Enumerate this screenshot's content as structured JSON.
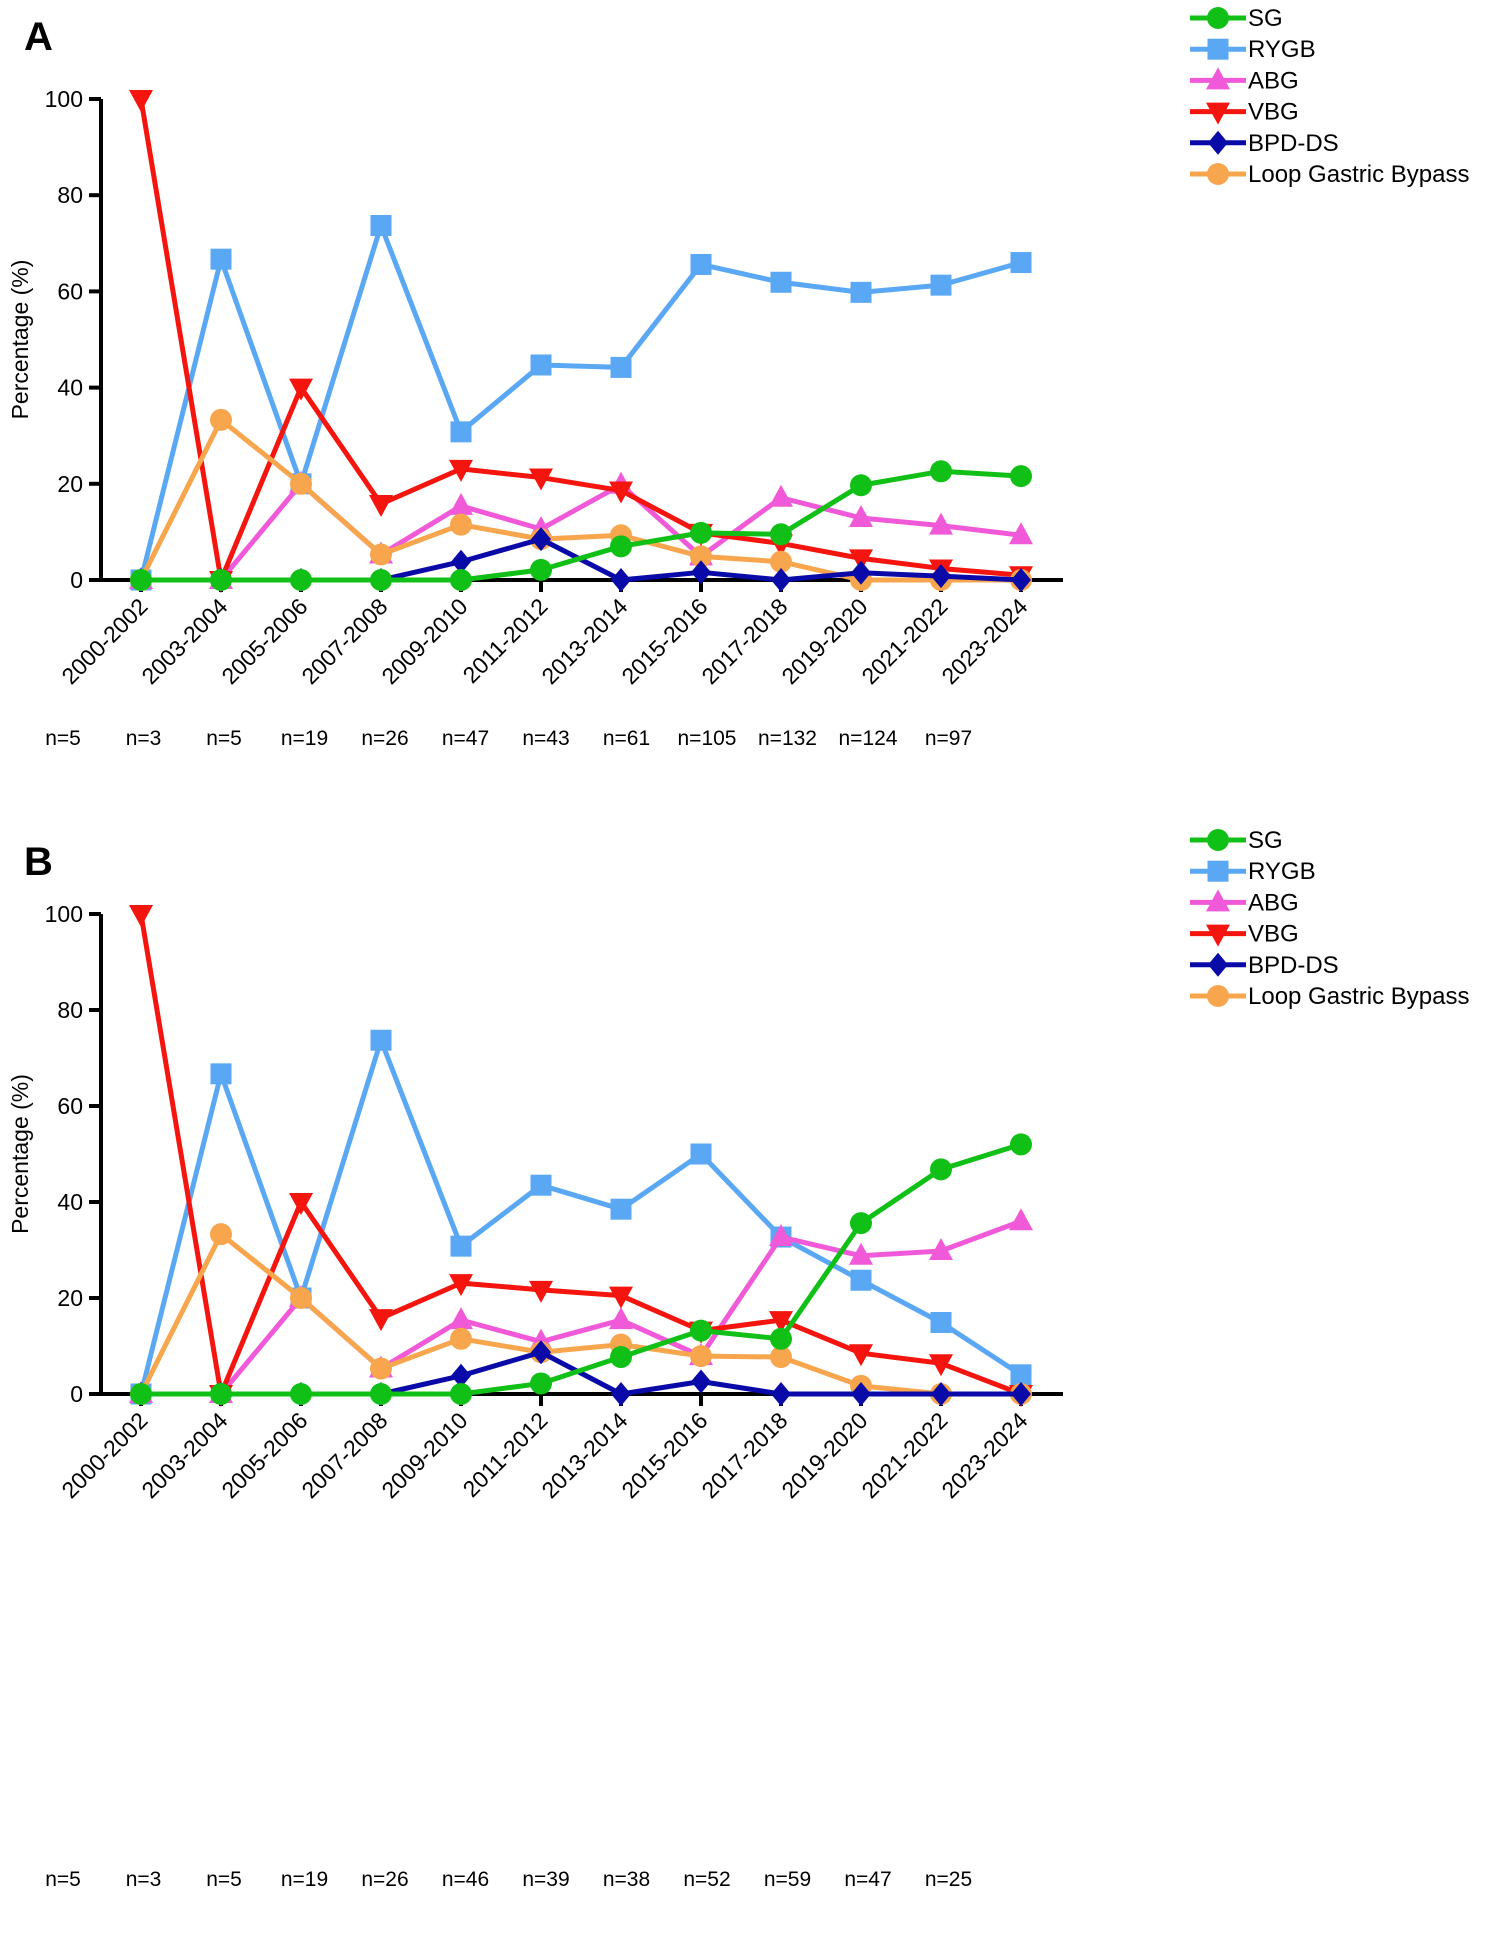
{
  "chart_data": [
    {
      "panel": "A",
      "type": "line",
      "ylabel": "Percentage (%)",
      "xlabel": "",
      "ylim": [
        0,
        100
      ],
      "yticks": [
        0,
        20,
        40,
        60,
        80,
        100
      ],
      "categories": [
        "2000-2002",
        "2003-2004",
        "2005-2006",
        "2007-2008",
        "2009-2010",
        "2011-2012",
        "2013-2014",
        "2015-2016",
        "2017-2018",
        "2019-2020",
        "2021-2022",
        "2023-2024"
      ],
      "n_labels": [
        "n=5",
        "n=3",
        "n=5",
        "n=19",
        "n=26",
        "n=47",
        "n=43",
        "n=61",
        "n=105",
        "n=132",
        "n=124",
        "n=97"
      ],
      "legend_position": "top-right",
      "series": [
        {
          "name": "SG",
          "color": "#11c016",
          "marker": "circle",
          "values": [
            0,
            0,
            0,
            0,
            0,
            2.1,
            7,
            9.8,
            9.5,
            19.7,
            22.6,
            21.6
          ]
        },
        {
          "name": "RYGB",
          "color": "#5aa8f4",
          "marker": "square",
          "values": [
            0,
            66.7,
            20,
            73.7,
            30.8,
            44.7,
            44.2,
            65.6,
            61.9,
            59.8,
            61.3,
            66
          ]
        },
        {
          "name": "ABG",
          "color": "#f05ad8",
          "marker": "triangle-up",
          "values": [
            0,
            0,
            20,
            5.3,
            15.4,
            10.6,
            19.8,
            4.9,
            17.1,
            12.9,
            11.3,
            9.3
          ]
        },
        {
          "name": "VBG",
          "color": "#f5150f",
          "marker": "triangle-down",
          "values": [
            100,
            0,
            40,
            15.8,
            23.1,
            21.3,
            18.6,
            9.8,
            7.6,
            4.5,
            2.4,
            1
          ]
        },
        {
          "name": "BPD-DS",
          "color": "#0a0aa8",
          "marker": "diamond",
          "values": [
            0,
            0,
            0,
            0,
            3.8,
            8.5,
            0,
            1.6,
            0,
            1.5,
            0.8,
            0
          ]
        },
        {
          "name": "Loop Gastric Bypass",
          "color": "#f7a64d",
          "marker": "circle",
          "values": [
            0,
            33.3,
            20,
            5.3,
            11.5,
            8.5,
            9.3,
            4.9,
            3.8,
            0,
            0,
            0
          ]
        }
      ]
    },
    {
      "panel": "B",
      "type": "line",
      "ylabel": "Percentage (%)",
      "xlabel": "",
      "ylim": [
        0,
        100
      ],
      "yticks": [
        0,
        20,
        40,
        60,
        80,
        100
      ],
      "categories": [
        "2000-2002",
        "2003-2004",
        "2005-2006",
        "2007-2008",
        "2009-2010",
        "2011-2012",
        "2013-2014",
        "2015-2016",
        "2017-2018",
        "2019-2020",
        "2021-2022",
        "2023-2024"
      ],
      "n_labels": [
        "n=5",
        "n=3",
        "n=5",
        "n=19",
        "n=26",
        "n=46",
        "n=39",
        "n=38",
        "n=52",
        "n=59",
        "n=47",
        "n=25"
      ],
      "legend_position": "top-right",
      "series": [
        {
          "name": "SG",
          "color": "#11c016",
          "marker": "circle",
          "values": [
            0,
            0,
            0,
            0,
            0,
            2.2,
            7.7,
            13.2,
            11.5,
            35.6,
            46.8,
            52
          ]
        },
        {
          "name": "RYGB",
          "color": "#5aa8f4",
          "marker": "square",
          "values": [
            0,
            66.7,
            20,
            73.7,
            30.8,
            43.5,
            38.5,
            50,
            32.7,
            23.7,
            14.9,
            4
          ]
        },
        {
          "name": "ABG",
          "color": "#f05ad8",
          "marker": "triangle-up",
          "values": [
            0,
            0,
            20,
            5.3,
            15.4,
            10.9,
            15.4,
            7.9,
            32.7,
            28.8,
            29.8,
            36
          ]
        },
        {
          "name": "VBG",
          "color": "#f5150f",
          "marker": "triangle-down",
          "values": [
            100,
            0,
            40,
            15.8,
            23.1,
            21.7,
            20.5,
            13.2,
            15.4,
            8.5,
            6.4,
            0
          ]
        },
        {
          "name": "BPD-DS",
          "color": "#0a0aa8",
          "marker": "diamond",
          "values": [
            0,
            0,
            0,
            0,
            3.8,
            8.7,
            0,
            2.6,
            0,
            0,
            0,
            0
          ]
        },
        {
          "name": "Loop Gastric Bypass",
          "color": "#f7a64d",
          "marker": "circle",
          "values": [
            0,
            33.3,
            20,
            5.3,
            11.5,
            8.7,
            10.3,
            7.9,
            7.7,
            1.7,
            0,
            0
          ]
        }
      ]
    }
  ]
}
